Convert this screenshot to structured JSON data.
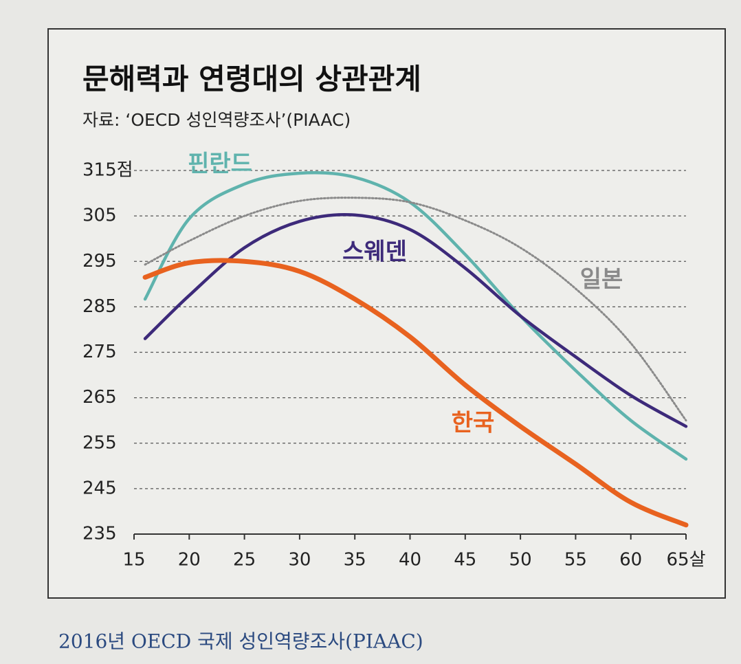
{
  "chart_data": {
    "type": "line",
    "title": "문해력과 연령대의 상관관계",
    "subtitle": "자료: ‘OECD 성인역량조사’(PIAAC)",
    "caption": "2016년 OECD 국제 성인역량조사(PIAAC)",
    "x": [
      16,
      20,
      25,
      30,
      35,
      40,
      45,
      50,
      55,
      60,
      65
    ],
    "xlim": [
      15,
      65
    ],
    "xticks": [
      15,
      20,
      25,
      30,
      35,
      40,
      45,
      50,
      55,
      60,
      {
        "value": 65,
        "label": "65살"
      }
    ],
    "ylim": [
      235,
      315
    ],
    "yticks": [
      235,
      245,
      255,
      265,
      275,
      285,
      295,
      305,
      {
        "value": 315,
        "label": "315점"
      }
    ],
    "grid": true,
    "series": [
      {
        "name": "핀란드",
        "color": "#5fb3ad",
        "line_style": "solid",
        "values": [
          286.7,
          304.4,
          312,
          314.4,
          313.5,
          308,
          296.5,
          283,
          271,
          260,
          251.5
        ]
      },
      {
        "name": "스웨덴",
        "color": "#3d2a7a",
        "line_style": "solid",
        "values": [
          278,
          287.5,
          298,
          303.8,
          305.2,
          302,
          293.5,
          283,
          274,
          265.5,
          258.7
        ]
      },
      {
        "name": "일본",
        "color": "#8a8a8a",
        "line_style": "dotted",
        "values": [
          294.3,
          299.5,
          305,
          308.3,
          309,
          308,
          304,
          298,
          289,
          277,
          260
        ]
      },
      {
        "name": "한국",
        "color": "#e8621f",
        "line_style": "solid",
        "values": [
          291.5,
          294.7,
          295,
          292.8,
          286.7,
          278.4,
          267.8,
          258.7,
          250.4,
          242,
          237
        ]
      }
    ]
  }
}
